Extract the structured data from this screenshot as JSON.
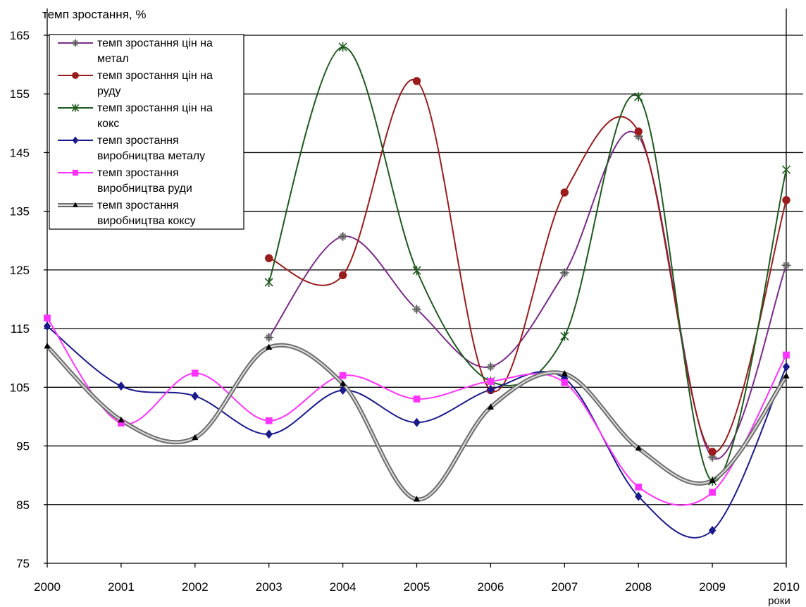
{
  "chart_data": {
    "type": "line",
    "ylabel": "темп зростання, %",
    "xlabel": "роки",
    "categories": [
      "2000",
      "2001",
      "2002",
      "2003",
      "2004",
      "2005",
      "2006",
      "2007",
      "2008",
      "2009",
      "2010"
    ],
    "ylim": [
      75,
      165
    ],
    "yticks": [
      75,
      85,
      95,
      105,
      115,
      125,
      135,
      145,
      155,
      165
    ],
    "grid": true,
    "legend_position": "top-left",
    "series": [
      {
        "name_lines": [
          "темп зростання цін на",
          "метал"
        ],
        "color": "#7b2c8a",
        "marker": "cross-square",
        "marker_color": "#8c8c8c",
        "values": [
          null,
          null,
          null,
          113.5,
          130.7,
          118.3,
          108.5,
          124.5,
          147.8,
          93.1,
          125.8
        ]
      },
      {
        "name_lines": [
          "темп зростання цін на",
          "руду"
        ],
        "color": "#9b1c1c",
        "marker": "circle",
        "marker_color": "#9b1c1c",
        "values": [
          null,
          null,
          null,
          127.0,
          124.1,
          157.2,
          104.5,
          138.2,
          148.6,
          94.0,
          136.9
        ]
      },
      {
        "name_lines": [
          "темп зростання цін на",
          "кокс"
        ],
        "color": "#1e5a1e",
        "marker": "asterisk",
        "marker_color": "#1e5a1e",
        "values": [
          null,
          null,
          null,
          122.9,
          163.0,
          124.9,
          106.0,
          113.7,
          154.5,
          89.0,
          142.1
        ]
      },
      {
        "name_lines": [
          "темп зростання",
          "виробництва металу"
        ],
        "color": "#1a1a8c",
        "marker": "diamond",
        "marker_color": "#1a1a8c",
        "values": [
          115.4,
          105.2,
          103.5,
          97.0,
          104.5,
          99.0,
          104.6,
          106.5,
          86.4,
          80.6,
          108.5
        ]
      },
      {
        "name_lines": [
          "темп зростання",
          "виробництва руди"
        ],
        "color": "#ff33ff",
        "marker": "square",
        "marker_color": "#ff33ff",
        "values": [
          116.8,
          98.9,
          107.4,
          99.3,
          107.0,
          103.0,
          106.0,
          105.8,
          88.0,
          87.1,
          110.5
        ]
      },
      {
        "name_lines": [
          "темп зростання",
          "виробництва коксу"
        ],
        "color": "#8a8a8a",
        "marker": "triangle",
        "marker_color": "#000000",
        "values": [
          112.0,
          99.4,
          96.4,
          111.8,
          105.6,
          85.9,
          101.6,
          107.3,
          94.6,
          89.1,
          106.9
        ]
      }
    ]
  }
}
